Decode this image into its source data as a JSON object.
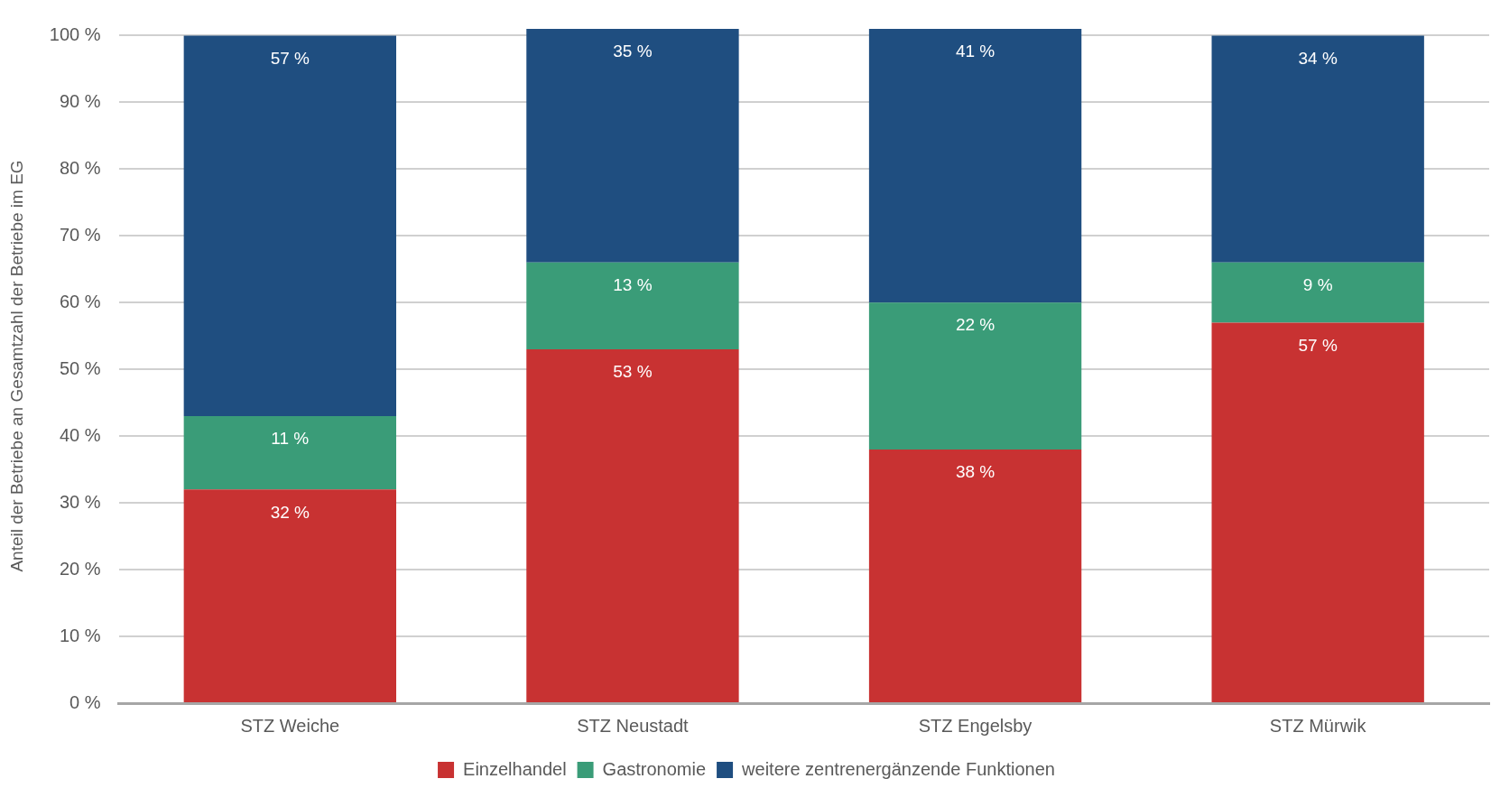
{
  "chart_data": {
    "type": "bar",
    "stacked": true,
    "ylabel": "Anteil der Betriebe an Gesamtzahl der Betriebe im EG",
    "categories": [
      "STZ Weiche",
      "STZ Neustadt",
      "STZ Engelsby",
      "STZ Mürwik"
    ],
    "series": [
      {
        "name": "Einzelhandel",
        "color": "#c83232",
        "values": [
          32,
          53,
          38,
          57
        ],
        "value_labels": [
          "32 %",
          "53 %",
          "38 %",
          "57 %"
        ]
      },
      {
        "name": "Gastronomie",
        "color": "#3a9c78",
        "values": [
          11,
          13,
          22,
          9
        ],
        "value_labels": [
          "11 %",
          "13 %",
          "22 %",
          "9 %"
        ]
      },
      {
        "name": "weitere zentrenergänzende Funktionen",
        "color": "#1f4e80",
        "values": [
          57,
          35,
          41,
          34
        ],
        "value_labels": [
          "57 %",
          "35 %",
          "41 %",
          "34 %"
        ]
      }
    ],
    "ylim": [
      0,
      101
    ],
    "yticks": [
      {
        "value": 0,
        "label": "0 %"
      },
      {
        "value": 10,
        "label": "10 %"
      },
      {
        "value": 20,
        "label": "20 %"
      },
      {
        "value": 30,
        "label": "30 %"
      },
      {
        "value": 40,
        "label": "40 %"
      },
      {
        "value": 50,
        "label": "50 %"
      },
      {
        "value": 60,
        "label": "60 %"
      },
      {
        "value": 70,
        "label": "70 %"
      },
      {
        "value": 80,
        "label": "80 %"
      },
      {
        "value": 90,
        "label": "90 %"
      },
      {
        "value": 100,
        "label": "100 %"
      }
    ],
    "grid": "y",
    "legend": "bottom"
  }
}
